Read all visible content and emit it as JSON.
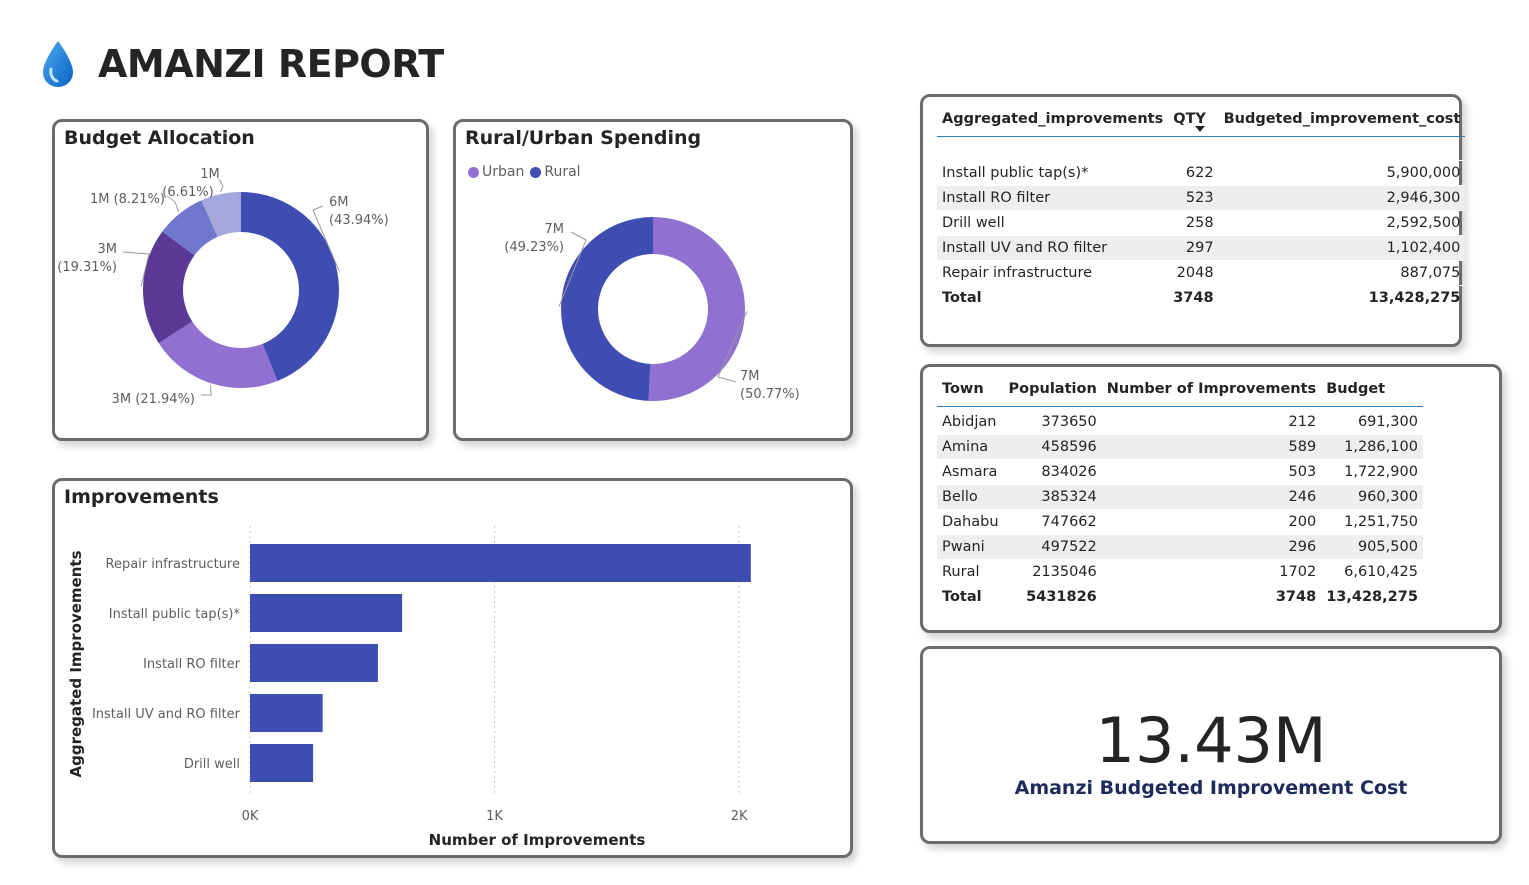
{
  "report": {
    "title": "AMANZI REPORT",
    "icon": "water-drop-icon"
  },
  "colors": {
    "dark_blue": "#3f4db3",
    "purple": "#9070d0",
    "dark_purple": "#5a3a96",
    "medium_blue": "#6f78cc",
    "light_blue": "#a3a7dc",
    "table_rule": "#2f7dc1"
  },
  "budget_allocation": {
    "title": "Budget Allocation",
    "chart_data": {
      "type": "pie",
      "slices": [
        {
          "label": "6M",
          "pct": "(43.94%)",
          "value": 43.94,
          "color": "#3f4db3"
        },
        {
          "label": "3M (21.94%)",
          "pct": "",
          "value": 21.94,
          "color": "#9070d0"
        },
        {
          "label": "3M",
          "pct": "(19.31%)",
          "value": 19.31,
          "color": "#5a3a96"
        },
        {
          "label": "1M (8.21%)",
          "pct": "",
          "value": 8.21,
          "color": "#6f78cc"
        },
        {
          "label": "1M",
          "pct": "(6.61%)",
          "value": 6.61,
          "color": "#a3a7dc"
        }
      ]
    }
  },
  "rural_urban": {
    "title": "Rural/Urban Spending",
    "legend": [
      {
        "label": "Urban",
        "color": "#9070d0"
      },
      {
        "label": "Rural",
        "color": "#3f4db3"
      }
    ],
    "chart_data": {
      "type": "pie",
      "slices": [
        {
          "label": "7M",
          "pct": "(50.77%)",
          "value": 50.77,
          "color": "#9070d0"
        },
        {
          "label": "7M",
          "pct": "(49.23%)",
          "value": 49.23,
          "color": "#3f4db3"
        }
      ]
    }
  },
  "improvements": {
    "title": "Improvements",
    "chart_data": {
      "type": "bar",
      "categories": [
        "Repair infrastructure",
        "Install public tap(s)*",
        "Install RO filter",
        "Install UV and RO filter",
        "Drill well"
      ],
      "values": [
        2048,
        622,
        523,
        297,
        258
      ],
      "xlabel": "Number of Improvements",
      "ylabel": "Aggregated Improvements",
      "xlim": [
        0,
        2200
      ],
      "xticks": [
        {
          "v": 0,
          "label": "0K"
        },
        {
          "v": 1000,
          "label": "1K"
        },
        {
          "v": 2000,
          "label": "2K"
        }
      ],
      "color": "#3f4db3"
    }
  },
  "agg_table": {
    "headers": [
      "Aggregated_improvements",
      "QTY",
      "Budgeted_improvement_cost"
    ],
    "rows": [
      [
        "Install public tap(s)*",
        "622",
        "5,900,000"
      ],
      [
        "Install RO filter",
        "523",
        "2,946,300"
      ],
      [
        "Drill well",
        "258",
        "2,592,500"
      ],
      [
        "Install UV and RO filter",
        "297",
        "1,102,400"
      ],
      [
        "Repair infrastructure",
        "2048",
        "887,075"
      ]
    ],
    "total": [
      "Total",
      "3748",
      "13,428,275"
    ]
  },
  "town_table": {
    "headers": [
      "Town",
      "Population",
      "Number of Improvements",
      "Budget"
    ],
    "rows": [
      [
        "Abidjan",
        "373650",
        "212",
        "691,300"
      ],
      [
        "Amina",
        "458596",
        "589",
        "1,286,100"
      ],
      [
        "Asmara",
        "834026",
        "503",
        "1,722,900"
      ],
      [
        "Bello",
        "385324",
        "246",
        "960,300"
      ],
      [
        "Dahabu",
        "747662",
        "200",
        "1,251,750"
      ],
      [
        "Pwani",
        "497522",
        "296",
        "905,500"
      ],
      [
        "Rural",
        "2135046",
        "1702",
        "6,610,425"
      ]
    ],
    "total": [
      "Total",
      "5431826",
      "3748",
      "13,428,275"
    ]
  },
  "kpi": {
    "value": "13.43M",
    "label": "Amanzi Budgeted Improvement Cost"
  }
}
